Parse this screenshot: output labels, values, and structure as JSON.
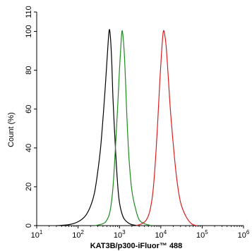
{
  "chart_data": {
    "type": "line",
    "title": "",
    "xlabel": "KAT3B/p300-iFluor™ 488",
    "ylabel": "Count (%)",
    "xscale": "log",
    "xlim": [
      10,
      1000000
    ],
    "ylim": [
      0,
      110
    ],
    "grid": false,
    "legend": "none",
    "x_ticks": [
      {
        "value": 10,
        "base": "10",
        "exp": "1"
      },
      {
        "value": 100,
        "base": "10",
        "exp": "2"
      },
      {
        "value": 1000,
        "base": "10",
        "exp": "3"
      },
      {
        "value": 10000,
        "base": "10",
        "exp": "4"
      },
      {
        "value": 100000,
        "base": "10",
        "exp": "5"
      },
      {
        "value": 1000000,
        "base": "10",
        "exp": "6"
      }
    ],
    "y_ticks": [
      "0",
      "20",
      "40",
      "60",
      "80",
      "100",
      "110"
    ],
    "series": [
      {
        "color": "#000000",
        "points": [
          [
            30,
            0
          ],
          [
            60,
            0.5
          ],
          [
            100,
            2
          ],
          [
            150,
            5
          ],
          [
            200,
            10
          ],
          [
            250,
            17
          ],
          [
            300,
            28
          ],
          [
            350,
            40
          ],
          [
            400,
            55
          ],
          [
            450,
            70
          ],
          [
            500,
            85
          ],
          [
            560,
            100
          ],
          [
            600,
            98
          ],
          [
            650,
            85
          ],
          [
            700,
            65
          ],
          [
            800,
            40
          ],
          [
            900,
            22
          ],
          [
            1000,
            12
          ],
          [
            1200,
            5
          ],
          [
            1500,
            2
          ],
          [
            2000,
            0.5
          ],
          [
            3000,
            0
          ]
        ]
      },
      {
        "color": "#1f8a1f",
        "points": [
          [
            250,
            0
          ],
          [
            400,
            1
          ],
          [
            500,
            3
          ],
          [
            600,
            8
          ],
          [
            700,
            20
          ],
          [
            800,
            40
          ],
          [
            900,
            60
          ],
          [
            1000,
            80
          ],
          [
            1100,
            95
          ],
          [
            1150,
            100
          ],
          [
            1200,
            99
          ],
          [
            1300,
            90
          ],
          [
            1400,
            75
          ],
          [
            1500,
            58
          ],
          [
            1700,
            35
          ],
          [
            2000,
            18
          ],
          [
            2500,
            8
          ],
          [
            3000,
            3
          ],
          [
            4000,
            1
          ],
          [
            6000,
            0
          ]
        ]
      },
      {
        "color": "#d62020",
        "points": [
          [
            2500,
            0
          ],
          [
            3500,
            1
          ],
          [
            4500,
            3
          ],
          [
            5500,
            8
          ],
          [
            6500,
            18
          ],
          [
            7500,
            35
          ],
          [
            8500,
            55
          ],
          [
            9500,
            75
          ],
          [
            10500,
            90
          ],
          [
            11500,
            100
          ],
          [
            12500,
            98
          ],
          [
            13500,
            92
          ],
          [
            15000,
            78
          ],
          [
            17000,
            60
          ],
          [
            20000,
            42
          ],
          [
            24000,
            25
          ],
          [
            30000,
            12
          ],
          [
            40000,
            5
          ],
          [
            55000,
            1
          ],
          [
            75000,
            0
          ]
        ]
      }
    ]
  }
}
